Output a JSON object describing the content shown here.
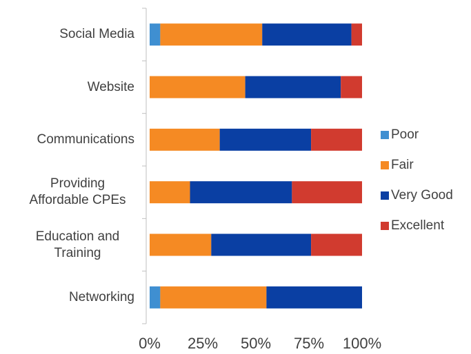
{
  "chart_data": {
    "type": "bar",
    "orientation": "horizontal",
    "stacked": true,
    "categories": [
      "Social Media",
      "Website",
      "Communications",
      "Providing Affordable CPEs",
      "Education and Training",
      "Networking"
    ],
    "series": [
      {
        "name": "Poor",
        "color": "#3f8fd1",
        "values": [
          5,
          0,
          0,
          0,
          0,
          5
        ]
      },
      {
        "name": "Fair",
        "color": "#f58a23",
        "values": [
          48,
          45,
          33,
          19,
          29,
          50
        ]
      },
      {
        "name": "Very Good",
        "color": "#0a3fa3",
        "values": [
          42,
          45,
          43,
          48,
          47,
          45
        ]
      },
      {
        "name": "Excellent",
        "color": "#d13b2f",
        "values": [
          5,
          10,
          24,
          33,
          24,
          0
        ]
      }
    ],
    "xlim": [
      0,
      100
    ],
    "xticks": [
      {
        "value": 0,
        "label": "0%"
      },
      {
        "value": 25,
        "label": "25%"
      },
      {
        "value": 50,
        "label": "50%"
      },
      {
        "value": 75,
        "label": "75%"
      },
      {
        "value": 100,
        "label": "100%"
      }
    ],
    "grid": false,
    "legend": "right"
  }
}
